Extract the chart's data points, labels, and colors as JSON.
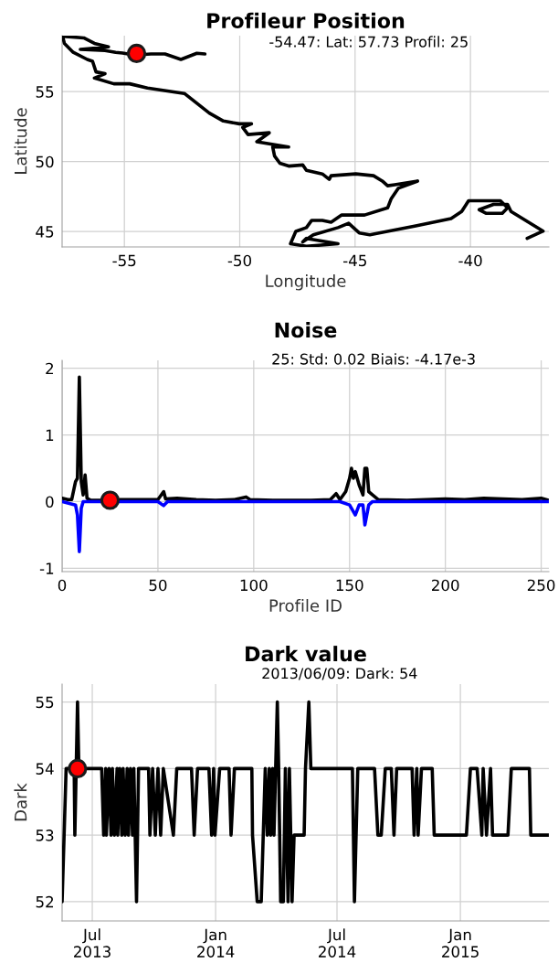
{
  "chart_data": [
    {
      "type": "line",
      "title": "Profileur Position",
      "xlabel": "Longitude",
      "ylabel": "Latitude",
      "xlim": [
        -57.7,
        -36.6
      ],
      "ylim": [
        43.9,
        59.0
      ],
      "xticks": [
        -55,
        -50,
        -45,
        -40
      ],
      "yticks": [
        45,
        50,
        55
      ],
      "grid": true,
      "legend": false,
      "annotations": [
        "-54.47: Lat: 57.73 Profil: 25"
      ],
      "series": [
        {
          "color": "#000000",
          "x": [
            -51.51,
            -51.86,
            -52.55,
            -53.24,
            -53.85,
            -54.54,
            -55.08,
            -55.38,
            -55.84,
            -56.91,
            -55.69,
            -56.3,
            -56.76,
            -57.68,
            -57.6,
            -57.22,
            -56.61,
            -56.38,
            -56.23,
            -55.84,
            -56.3,
            -55.46,
            -54.77,
            -54.0,
            -52.4,
            -51.32,
            -50.71,
            -50.02,
            -49.49,
            -49.87,
            -49.64,
            -48.72,
            -49.26,
            -47.88,
            -48.57,
            -48.49,
            -48.26,
            -47.88,
            -47.27,
            -47.11,
            -46.42,
            -46.12,
            -46.04,
            -44.97,
            -44.2,
            -43.82,
            -43.59,
            -43.28,
            -42.29,
            -43.13,
            -43.44,
            -43.59,
            -44.59,
            -45.58,
            -46.04,
            -46.42,
            -46.88,
            -47.11,
            -47.57,
            -47.8,
            -47.11,
            -45.74,
            -47.11,
            -47.27,
            -46.81,
            -45.74,
            -45.28,
            -44.82,
            -44.36,
            -42.37,
            -40.84,
            -40.38,
            -40.08,
            -38.7,
            -38.39,
            -38.62,
            -39.31,
            -39.62,
            -39.0,
            -38.39,
            -38.24,
            -36.85,
            -37.54
          ],
          "values": [
            57.69,
            57.74,
            57.3,
            57.69,
            57.69,
            57.61,
            57.76,
            57.81,
            57.94,
            58.02,
            58.2,
            58.45,
            58.84,
            58.96,
            58.45,
            57.81,
            57.3,
            57.17,
            56.41,
            56.28,
            55.97,
            55.56,
            55.56,
            55.26,
            54.87,
            53.47,
            52.9,
            52.7,
            52.7,
            52.44,
            51.93,
            52.06,
            51.42,
            51.04,
            51.04,
            50.4,
            49.88,
            49.68,
            49.76,
            49.37,
            49.12,
            48.73,
            48.99,
            49.12,
            48.99,
            48.61,
            48.27,
            48.35,
            48.61,
            48.09,
            47.33,
            46.69,
            46.18,
            46.18,
            45.67,
            45.8,
            45.8,
            45.28,
            45.01,
            44.13,
            43.95,
            44.13,
            44.51,
            44.26,
            44.77,
            45.28,
            45.59,
            44.9,
            44.77,
            45.41,
            45.92,
            46.43,
            47.2,
            47.2,
            46.69,
            46.3,
            46.3,
            46.56,
            46.94,
            46.94,
            46.43,
            45.03,
            44.51
          ]
        },
        {
          "type": "scatter",
          "marker": "circle",
          "color": "#ff0000",
          "x": [
            -54.47
          ],
          "values": [
            57.73
          ]
        }
      ]
    },
    {
      "type": "line",
      "title": "Noise",
      "xlabel": "Profile ID",
      "xlim": [
        0,
        254
      ],
      "ylim": [
        -1.05,
        2.12
      ],
      "xticks": [
        0,
        50,
        100,
        150,
        200,
        250
      ],
      "yticks": [
        -1,
        0,
        1,
        2
      ],
      "grid": true,
      "legend": false,
      "annotations": [
        "25: Std: 0.02 Biais: -4.17e-3"
      ],
      "series": [
        {
          "color": "#000000",
          "x": [
            0,
            3,
            5,
            7,
            8,
            9,
            10,
            11,
            12,
            13,
            15,
            20,
            25,
            30,
            40,
            50,
            53,
            54,
            60,
            70,
            80,
            90,
            96,
            98,
            110,
            120,
            130,
            140,
            143,
            145,
            148,
            150,
            151,
            152,
            153,
            155,
            157,
            158,
            159,
            160,
            162,
            165,
            180,
            190,
            200,
            210,
            220,
            230,
            240,
            250,
            254
          ],
          "values": [
            0.05,
            0.03,
            0.03,
            0.3,
            0.35,
            1.87,
            0.3,
            0.1,
            0.4,
            0.05,
            0.02,
            0.02,
            null,
            0.03,
            0.03,
            0.03,
            0.15,
            0.04,
            0.05,
            0.03,
            0.02,
            0.03,
            0.07,
            0.03,
            0.02,
            0.02,
            0.02,
            0.03,
            0.12,
            0.03,
            0.15,
            0.35,
            0.5,
            0.35,
            0.45,
            0.25,
            0.1,
            0.5,
            0.5,
            0.15,
            0.1,
            0.03,
            0.02,
            0.03,
            0.04,
            0.03,
            0.05,
            0.04,
            0.03,
            0.05,
            0.02
          ]
        },
        {
          "color": "#0000ff",
          "x": [
            0,
            7,
            8,
            9,
            10,
            11,
            20,
            50,
            53,
            55,
            100,
            145,
            150,
            153,
            155,
            157,
            158,
            160,
            162,
            200,
            254
          ],
          "values": [
            0,
            -0.05,
            -0.2,
            -0.75,
            -0.1,
            0,
            0,
            0,
            -0.06,
            0,
            0,
            0,
            -0.05,
            -0.2,
            -0.05,
            -0.05,
            -0.35,
            -0.05,
            0,
            0,
            0
          ]
        },
        {
          "type": "scatter",
          "marker": "circle",
          "color": "#ff0000",
          "x": [
            25
          ],
          "values": [
            0.02
          ]
        }
      ]
    },
    {
      "type": "line",
      "title": "Dark value",
      "ylabel": "Dark",
      "xlim": [
        "2013-05-17",
        "2015-05-13"
      ],
      "ylim": [
        51.71,
        55.27
      ],
      "xticks": [
        {
          "value": "2013-07-01",
          "label": "Jul\n2013"
        },
        {
          "value": "2014-01-01",
          "label": "Jan\n2014"
        },
        {
          "value": "2014-07-01",
          "label": "Jul\n2014"
        },
        {
          "value": "2015-01-01",
          "label": "Jan\n2015"
        }
      ],
      "yticks": [
        52,
        53,
        54,
        55
      ],
      "grid": true,
      "legend": false,
      "annotations": [
        "2013/06/09: Dark: 54"
      ],
      "series": [
        {
          "color": "#000000",
          "x": [
            "2013-05-17",
            "2013-05-20",
            "2013-05-23",
            "2013-06-04",
            "2013-06-05",
            "2013-06-09",
            "2013-06-11",
            "2013-07-15",
            "2013-07-18",
            "2013-07-21",
            "2013-07-22",
            "2013-07-26",
            "2013-07-29",
            "2013-07-31",
            "2013-08-03",
            "2013-08-07",
            "2013-08-08",
            "2013-08-11",
            "2013-08-14",
            "2013-08-16",
            "2013-08-19",
            "2013-08-22",
            "2013-08-24",
            "2013-08-27",
            "2013-08-30",
            "2013-09-01",
            "2013-09-05",
            "2013-09-08",
            "2013-09-23",
            "2013-09-25",
            "2013-09-29",
            "2013-10-03",
            "2013-10-07",
            "2013-10-11",
            "2013-10-15",
            "2013-10-30",
            "2013-11-04",
            "2013-11-26",
            "2013-11-30",
            "2013-12-05",
            "2013-12-22",
            "2013-12-26",
            "2013-12-29",
            "2013-12-31",
            "2014-01-07",
            "2014-01-21",
            "2014-01-24",
            "2014-01-29",
            "2014-02-24",
            "2014-02-25",
            "2014-03-04",
            "2014-03-10",
            "2014-03-13",
            "2014-03-16",
            "2014-03-19",
            "2014-03-22",
            "2014-03-24",
            "2014-03-27",
            "2014-03-29",
            "2014-04-03",
            "2014-04-05",
            "2014-04-08",
            "2014-04-12",
            "2014-04-15",
            "2014-04-19",
            "2014-04-21",
            "2014-04-25",
            "2014-04-28",
            "2014-05-13",
            "2014-05-15",
            "2014-05-20",
            "2014-05-23",
            "2014-07-24",
            "2014-07-27",
            "2014-08-01",
            "2014-08-26",
            "2014-08-31",
            "2014-09-05",
            "2014-09-11",
            "2014-09-20",
            "2014-09-24",
            "2014-09-28",
            "2014-10-21",
            "2014-10-24",
            "2014-10-28",
            "2014-10-30",
            "2014-11-04",
            "2014-11-20",
            "2014-11-23",
            "2015-01-10",
            "2015-01-16",
            "2015-01-26",
            "2015-02-02",
            "2015-02-04",
            "2015-02-09",
            "2015-02-15",
            "2015-02-18",
            "2015-03-13",
            "2015-03-18",
            "2015-04-14",
            "2015-04-16",
            "2015-05-13"
          ],
          "values": [
            52,
            53,
            54,
            54,
            53,
            55,
            54,
            54,
            53,
            54,
            53,
            54,
            53,
            54,
            53,
            54,
            53,
            54,
            53,
            54,
            53,
            54,
            53,
            54,
            53,
            54,
            52,
            54,
            54,
            53,
            54,
            53,
            54,
            53,
            54,
            53,
            54,
            54,
            53,
            54,
            54,
            53,
            54,
            53,
            54,
            54,
            53,
            54,
            54,
            53,
            52,
            52,
            53,
            54,
            53,
            54,
            53,
            54,
            53,
            55,
            54,
            52,
            52,
            54,
            52,
            54,
            52,
            53,
            53,
            54,
            55,
            54,
            54,
            52,
            54,
            54,
            53,
            53,
            54,
            54,
            53,
            54,
            54,
            53,
            54,
            53,
            54,
            54,
            53,
            53,
            54,
            54,
            53,
            54,
            53,
            54,
            53,
            53,
            54,
            54,
            53,
            53
          ]
        },
        {
          "type": "scatter",
          "marker": "circle",
          "color": "#ff0000",
          "x": [
            "2013-06-09"
          ],
          "values": [
            54
          ]
        }
      ]
    }
  ]
}
